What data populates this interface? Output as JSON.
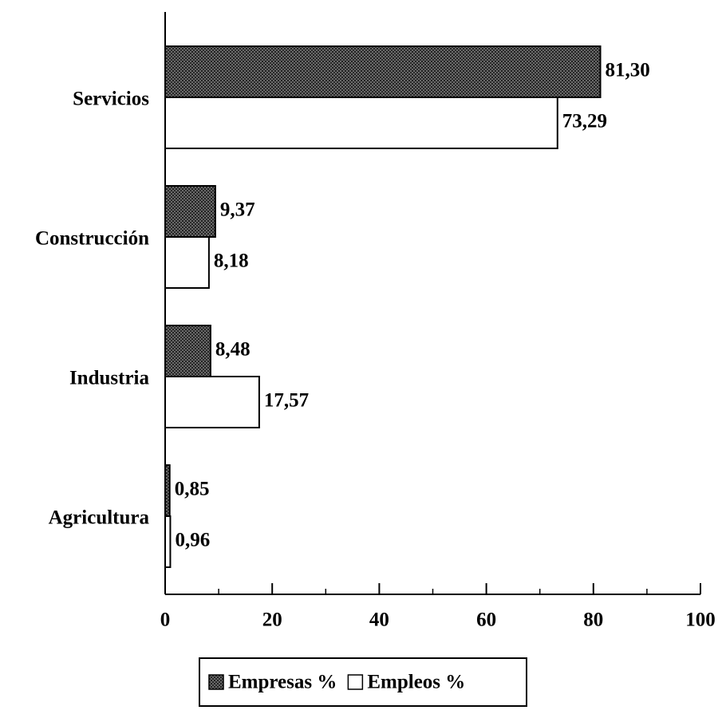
{
  "chart_data": {
    "type": "hbar",
    "categories": [
      "Servicios",
      "Construcción",
      "Industria",
      "Agricultura"
    ],
    "series": [
      {
        "name": "Empresas %",
        "color": "#3a3a3a",
        "values": [
          81.3,
          9.37,
          8.48,
          0.85
        ],
        "value_labels": [
          "81,30",
          "9,37",
          "8,48",
          "0,85"
        ]
      },
      {
        "name": "Empleos %",
        "color": "#ffffff",
        "values": [
          73.29,
          8.18,
          17.57,
          0.96
        ],
        "value_labels": [
          "73,29",
          "8,18",
          "17,57",
          "0,96"
        ]
      }
    ],
    "xlim": [
      0,
      100
    ],
    "xticks": [
      0,
      20,
      40,
      60,
      80,
      100
    ],
    "xminorticks": [
      10,
      30,
      50,
      70,
      90
    ],
    "legend": "bottom"
  }
}
